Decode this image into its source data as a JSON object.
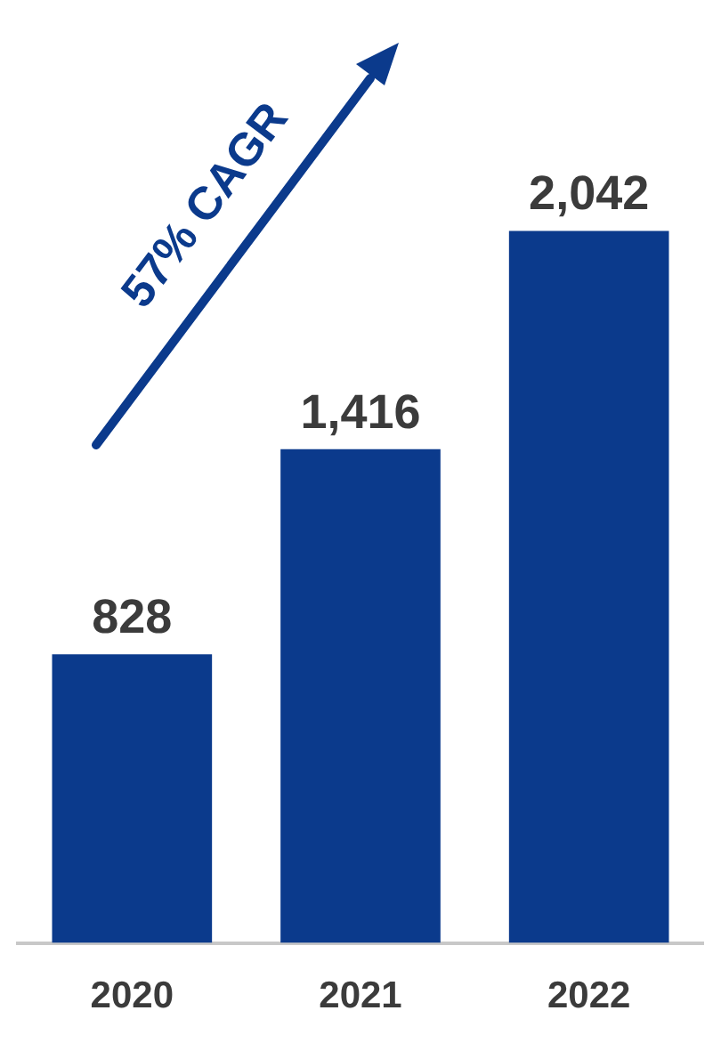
{
  "chart_data": {
    "type": "bar",
    "categories": [
      "2020",
      "2021",
      "2022"
    ],
    "values": [
      828,
      1416,
      2042
    ],
    "value_labels": [
      "828",
      "1,416",
      "2,042"
    ],
    "color": "#0b3a8c",
    "annotations": [
      "57% CAGR"
    ]
  }
}
